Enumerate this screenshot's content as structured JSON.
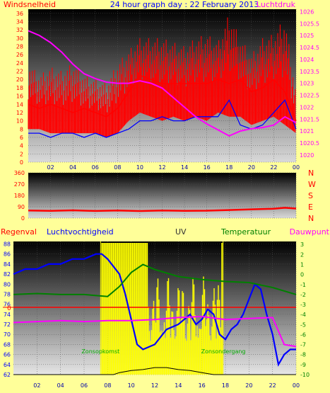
{
  "chart_data": [
    {
      "type": "line",
      "title": "24 hour graph day : 22 February 2013",
      "left_label": "Windsnelheid",
      "right_label": "Luchtdruk",
      "y_left_ticks": [
        "0",
        "2",
        "4",
        "6",
        "8",
        "10",
        "12",
        "14",
        "16",
        "18",
        "20",
        "22",
        "24",
        "26",
        "28",
        "30",
        "32",
        "34",
        "36"
      ],
      "y_right_ticks": [
        "1020",
        "1020.5",
        "1021",
        "1021.5",
        "1022",
        "1022.5",
        "1023",
        "1023.5",
        "1024",
        "1024.5",
        "1025",
        "1025.5",
        "1026"
      ],
      "x_ticks": [
        "02",
        "04",
        "06",
        "08",
        "10",
        "12",
        "14",
        "16",
        "18",
        "20",
        "22",
        "00"
      ],
      "ylim_left": [
        0,
        37
      ],
      "ylim_right": [
        1019.7,
        1026.1
      ],
      "series": [
        {
          "color": "#ff0000",
          "x": [
            0,
            1,
            2,
            3,
            4,
            5,
            6,
            7,
            8,
            9,
            10,
            11,
            12,
            13,
            14,
            15,
            16,
            17,
            18,
            19,
            20,
            21,
            22,
            23,
            24
          ],
          "y": [
            14,
            13,
            14,
            13,
            12,
            13,
            12,
            11,
            13,
            17,
            21,
            20,
            19,
            19,
            19,
            19,
            19,
            20,
            19,
            20,
            17,
            18,
            20,
            17,
            10
          ],
          "y_high": [
            24,
            21,
            23,
            22,
            24,
            21,
            20,
            19,
            24,
            27,
            30,
            30,
            30,
            29,
            28,
            30,
            31,
            29,
            36,
            30,
            26,
            30,
            31,
            35,
            17
          ],
          "y_low": [
            8,
            8,
            7,
            7,
            7,
            7,
            7,
            6,
            7,
            10,
            12,
            11,
            10,
            11,
            10,
            11,
            10,
            12,
            11,
            11,
            9,
            10,
            11,
            9,
            7
          ]
        },
        {
          "color": "#0000ff",
          "x": [
            0,
            1,
            2,
            3,
            4,
            5,
            6,
            7,
            8,
            9,
            10,
            11,
            12,
            13,
            14,
            15,
            16,
            17,
            18,
            19,
            20,
            21,
            22,
            23,
            24
          ],
          "y": [
            7,
            7,
            6,
            7,
            7,
            6,
            7,
            6,
            7,
            8,
            10,
            10,
            11,
            10,
            10,
            11,
            11,
            11,
            15,
            9,
            8,
            9,
            12,
            15,
            8
          ]
        },
        {
          "color": "#ff00ff",
          "x": [
            0,
            1,
            2,
            3,
            4,
            5,
            6,
            7,
            8,
            9,
            10,
            11,
            12,
            13,
            14,
            15,
            16,
            17,
            18,
            19,
            20,
            21,
            22,
            23,
            24
          ],
          "y": [
            1025.2,
            1025.0,
            1024.7,
            1024.3,
            1023.8,
            1023.4,
            1023.2,
            1023.05,
            1023.0,
            1023.0,
            1023.1,
            1023.0,
            1022.8,
            1022.4,
            1022.0,
            1021.6,
            1021.3,
            1021.05,
            1020.8,
            1021.0,
            1021.1,
            1021.15,
            1021.25,
            1021.6,
            1021.35
          ]
        }
      ]
    },
    {
      "type": "line",
      "y_ticks": [
        "0",
        "90",
        "180",
        "270",
        "360"
      ],
      "right_labels": [
        "N",
        "W",
        "S",
        "E",
        "N"
      ],
      "ylim": [
        0,
        360
      ],
      "series": [
        {
          "color": "#ff0000",
          "x": [
            0,
            2,
            4,
            6,
            8,
            10,
            12,
            14,
            16,
            18,
            20,
            22,
            23,
            24
          ],
          "y": [
            60,
            58,
            62,
            57,
            61,
            56,
            60,
            58,
            59,
            64,
            70,
            74,
            82,
            76
          ]
        }
      ]
    },
    {
      "type": "line",
      "left_label": "Regenval",
      "header_labels": [
        "Luchtvochtigheid",
        "UV",
        "Temperatuur",
        "Dauwpunt"
      ],
      "y_left_ticks": [
        "62",
        "64",
        "66",
        "68",
        "70",
        "72",
        "74",
        "76",
        "78",
        "80",
        "82",
        "84",
        "86",
        "88"
      ],
      "y_right_ticks": [
        "-10",
        "-9",
        "-8",
        "-7",
        "-6",
        "-5",
        "-4",
        "-3",
        "-2",
        "-1",
        "0",
        "1",
        "2",
        "3"
      ],
      "rain_value": "0",
      "ylim_left": [
        62,
        88.5
      ],
      "ylim_right": [
        -10,
        3.3
      ],
      "annotations": [
        "Zonsopkomst",
        "Zonsondergang"
      ],
      "sunrise_hour": 7.4,
      "sunset_hour": 17.8,
      "series": [
        {
          "color": "#0000ff",
          "x": [
            0,
            1,
            2,
            3,
            4,
            5,
            6,
            7,
            7.5,
            8,
            9,
            9.5,
            10,
            10.5,
            11,
            12,
            13,
            14,
            14.5,
            15,
            15.5,
            16,
            16.5,
            17,
            17.5,
            18,
            18.5,
            19,
            19.5,
            20,
            20.5,
            21,
            21.5,
            22,
            22.5,
            23,
            23.5,
            24
          ],
          "y": [
            82,
            83,
            83,
            84,
            84,
            85,
            85,
            86,
            86,
            85,
            82,
            78,
            73,
            68,
            67,
            68,
            71,
            72,
            73,
            74,
            72,
            73,
            75,
            74,
            70,
            69,
            71,
            72,
            74,
            77,
            80,
            79,
            74,
            70,
            64,
            66,
            67,
            67
          ]
        },
        {
          "color": "#008000",
          "x": [
            0,
            2,
            4,
            6,
            8,
            9,
            10,
            11,
            12,
            14,
            16,
            18,
            20,
            22,
            24
          ],
          "y": [
            -2.0,
            -1.9,
            -2.0,
            -2.0,
            -2.2,
            -1.2,
            0.2,
            1.0,
            0.5,
            -0.2,
            -0.5,
            -0.7,
            -0.8,
            -1.3,
            -2.0
          ]
        },
        {
          "color": "#ff00ff",
          "x": [
            0,
            2,
            4,
            6,
            8,
            10,
            12,
            14,
            16,
            18,
            20,
            22,
            23,
            24
          ],
          "y": [
            -4.8,
            -4.7,
            -4.6,
            -4.7,
            -4.6,
            -4.6,
            -4.5,
            -4.3,
            -4.2,
            -4.5,
            -4.4,
            -4.3,
            -7.0,
            -7.2
          ]
        },
        {
          "color": "#000000",
          "x": [
            0,
            8,
            8.5,
            9,
            10,
            11,
            12,
            13,
            14,
            15,
            16,
            17,
            18,
            24
          ],
          "y": [
            -10,
            -10,
            -10,
            -9.8,
            -9.6,
            -9.5,
            -9.3,
            -9.3,
            -9.5,
            -9.6,
            -9.8,
            -10,
            -10,
            -10
          ]
        }
      ]
    }
  ]
}
